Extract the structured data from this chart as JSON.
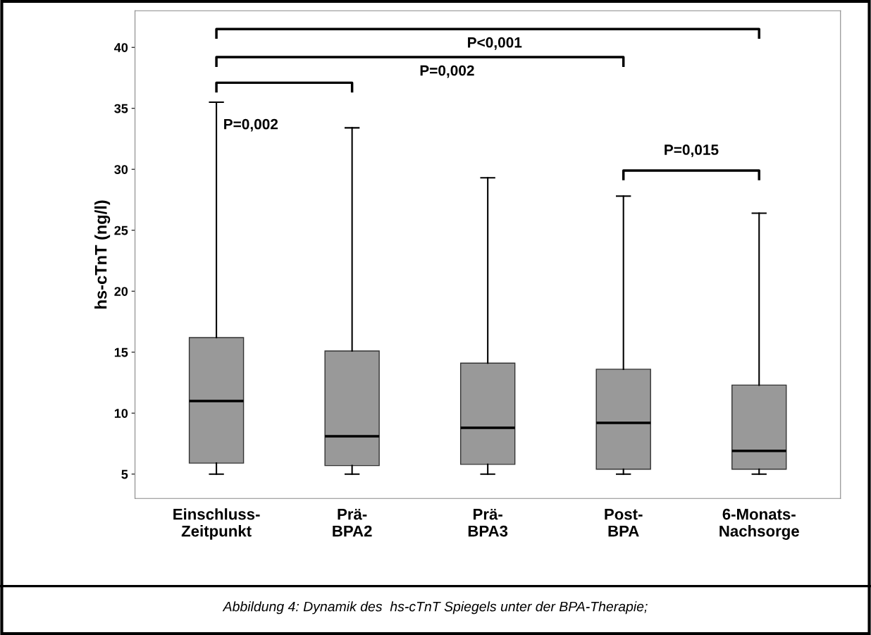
{
  "chart_data": {
    "type": "box",
    "ylabel": "hs-cTnT (ng/l)",
    "categories": [
      "Einschluss-\nZeitpunkt",
      "Prä-\nBPA2",
      "Prä-\nBPA3",
      "Post-\nBPA",
      "6-Monats-\nNachsorge"
    ],
    "boxes": [
      {
        "low": 5,
        "q1": 5.9,
        "median": 11.0,
        "q3": 16.2,
        "high": 35.5
      },
      {
        "low": 5,
        "q1": 5.7,
        "median": 8.1,
        "q3": 15.1,
        "high": 33.4
      },
      {
        "low": 5,
        "q1": 5.8,
        "median": 8.8,
        "q3": 14.1,
        "high": 29.3
      },
      {
        "low": 5,
        "q1": 5.4,
        "median": 9.2,
        "q3": 13.6,
        "high": 27.8
      },
      {
        "low": 5,
        "q1": 5.4,
        "median": 6.9,
        "q3": 12.3,
        "high": 26.4
      }
    ],
    "color": "#999999",
    "ylim": [
      3,
      43
    ],
    "yticks": [
      5,
      10,
      15,
      20,
      25,
      30,
      35,
      40
    ],
    "grid": false,
    "annotations": [
      "P=0,002",
      "P=0,002",
      "P<0,001",
      "P=0,015",
      "Abbildung 4: Dynamik des  hs-cTnT Spiegels unter der BPA-Therapie;"
    ]
  }
}
